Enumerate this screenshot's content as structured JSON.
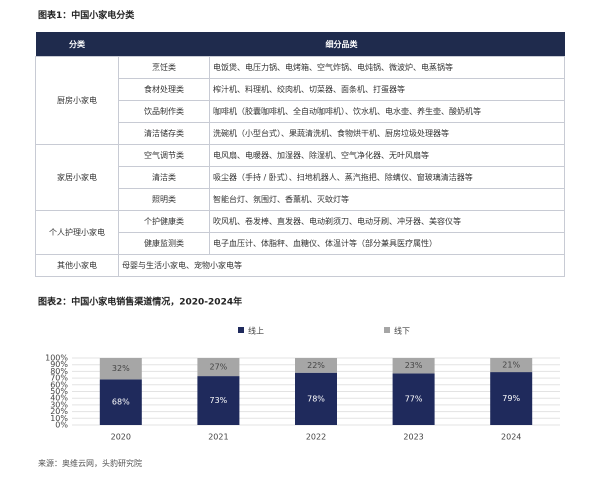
{
  "header": {
    "title": "图表1：中国小家电分类"
  },
  "table": {
    "header": [
      "分类",
      "细分品类"
    ],
    "groups": [
      {
        "name": "厨房小家电",
        "items": [
          {
            "sub": "烹饪类",
            "detail": "电饭煲、电压力锅、电烤箱、空气炸锅、电炖锅、微波炉、电蒸锅等"
          },
          {
            "sub": "食材处理类",
            "detail": "榨汁机、料理机、绞肉机、切菜器、面条机、打蛋器等"
          },
          {
            "sub": "饮品制作类",
            "detail": "咖啡机（胶囊咖啡机、全自动咖啡机）、饮水机、电水壶、养生壶、酸奶机等"
          },
          {
            "sub": "清洁储存类",
            "detail": "洗碗机（小型台式）、果蔬清洗机、食物烘干机、厨房垃圾处理器等"
          }
        ]
      },
      {
        "name": "家居小家电",
        "items": [
          {
            "sub": "空气调节类",
            "detail": "电风扇、电暖器、加湿器、除湿机、空气净化器、无叶风扇等"
          },
          {
            "sub": "清洁类",
            "detail": "吸尘器（手持 / 卧式）、扫地机器人、蒸汽拖把、除螨仪、窗玻璃清洁器等"
          },
          {
            "sub": "照明类",
            "detail": "智能台灯、氛围灯、香薰机、灭蚊灯等"
          }
        ]
      },
      {
        "name": "个人护理小家电",
        "items": [
          {
            "sub": "个护健康类",
            "detail": "吹风机、卷发棒、直发器、电动剃须刀、电动牙刷、冲牙器、美容仪等"
          },
          {
            "sub": "健康监测类",
            "detail": "电子血压计、体脂秤、血糖仪、体温计等（部分兼具医疗属性）"
          }
        ]
      },
      {
        "name": "其他小家电",
        "items": [
          {
            "detail": "母婴与生活小家电、宠物小家电等"
          }
        ]
      }
    ]
  },
  "chart_data": {
    "type": "bar",
    "stacked": true,
    "title": "图表2：中国小家电销售渠道情况，2020-2024年",
    "categories": [
      "2020",
      "2021",
      "2022",
      "2023",
      "2024"
    ],
    "series": [
      {
        "name": "线上",
        "color": "#1f2a5c",
        "values": [
          68,
          73,
          78,
          77,
          79
        ],
        "value_labels": [
          "68%",
          "73%",
          "78%",
          "77%",
          "79%"
        ]
      },
      {
        "name": "线下",
        "color": "#a6a6a6",
        "values": [
          32,
          27,
          22,
          23,
          21
        ],
        "value_labels": [
          "32%",
          "27%",
          "22%",
          "23%",
          "21%"
        ]
      }
    ],
    "ylim": [
      0,
      100
    ],
    "yticks": [
      {
        "value": 0,
        "label": "0%"
      },
      {
        "value": 10,
        "label": "10%"
      },
      {
        "value": 20,
        "label": "20%"
      },
      {
        "value": 30,
        "label": "30%"
      },
      {
        "value": 40,
        "label": "40%"
      },
      {
        "value": 50,
        "label": "50%"
      },
      {
        "value": 60,
        "label": "60%"
      },
      {
        "value": 70,
        "label": "70%"
      },
      {
        "value": 80,
        "label": "80%"
      },
      {
        "value": 90,
        "label": "90%"
      },
      {
        "value": 100,
        "label": "100%"
      }
    ],
    "grid": true
  },
  "source": "来源：奥维云网，头豹研究院"
}
